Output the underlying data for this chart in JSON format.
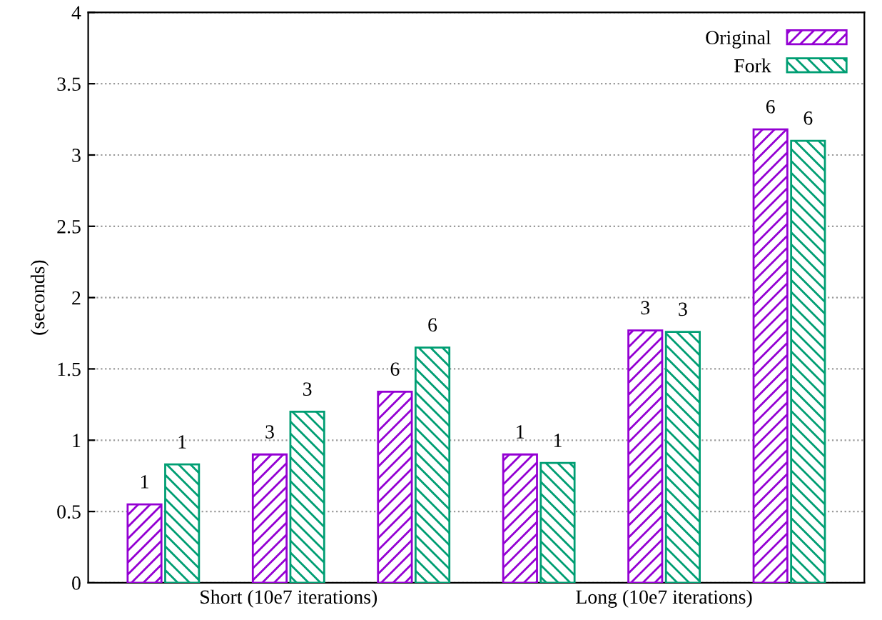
{
  "chart_data": {
    "type": "bar",
    "ylabel": "(seconds)",
    "categories": [
      null,
      "Short (10e7 iterations)",
      null,
      null,
      "Long (10e7 iterations)",
      null
    ],
    "series": [
      {
        "name": "Original",
        "color": "#9400d3",
        "values": [
          0.55,
          0.9,
          1.34,
          0.9,
          1.77,
          3.18
        ]
      },
      {
        "name": "Fork",
        "color": "#009e73",
        "values": [
          0.83,
          1.2,
          1.65,
          0.84,
          1.76,
          3.1
        ]
      }
    ],
    "annotations": [
      "1",
      "3",
      "6",
      "1",
      "3",
      "6",
      "1",
      "3",
      "6",
      "1",
      "3",
      "6"
    ],
    "ylim": [
      0,
      4
    ],
    "yticks": [
      0,
      0.5,
      1,
      1.5,
      2,
      2.5,
      3,
      3.5,
      4
    ],
    "grid": "y",
    "legend": "top right"
  }
}
